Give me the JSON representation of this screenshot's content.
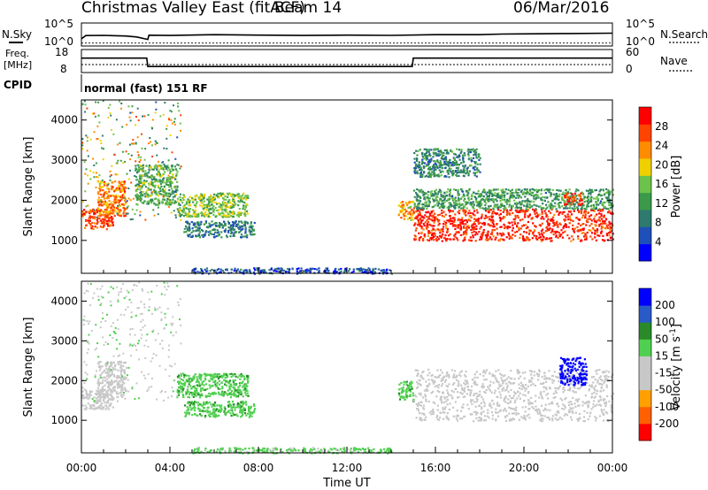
{
  "header": {
    "title": "Christmas Valley East (fitACF)",
    "beam": "Beam 14",
    "date": "06/Mar/2016",
    "cpid_label": "CPID",
    "mode": "normal (fast) 151 RF"
  },
  "nsky": {
    "label": "N.Sky",
    "tick_top": "10^5",
    "tick_bottom": "10^0",
    "right_label": "N.Search",
    "right_tick_top": "10^5",
    "right_tick_bottom": "10^0"
  },
  "freq": {
    "label_line1": "Freq.",
    "label_line2": "[MHz]",
    "tick_top": "18",
    "tick_bottom": "8",
    "right_label": "Nave",
    "right_tick_top": "60",
    "right_tick_bottom": "0"
  },
  "colors": {
    "power": [
      "#0000ff",
      "#1f4fb8",
      "#2e7a6e",
      "#3a9a4a",
      "#6cc24a",
      "#f0d000",
      "#ff8c00",
      "#ff4400",
      "#ff0000"
    ],
    "velocity": [
      "#ff0000",
      "#ff6000",
      "#ffa000",
      "#c8c8c8",
      "#c8c8c8",
      "#50d050",
      "#2a8a2a",
      "#2a5ac8",
      "#0000ff"
    ],
    "gray_scatter": "#c8c8c8"
  },
  "chart_data": [
    {
      "type": "line",
      "name": "nsky",
      "x": [
        0,
        0.2,
        1.0,
        2.0,
        2.5,
        3.0,
        3.05,
        4,
        6,
        8,
        10,
        12,
        14,
        16,
        18,
        19,
        20,
        22,
        24
      ],
      "y": [
        1.4,
        2.2,
        2.3,
        2.1,
        1.8,
        1.2,
        2.3,
        2.3,
        2.4,
        2.3,
        2.2,
        2.3,
        2.3,
        2.4,
        2.5,
        2.6,
        2.7,
        2.8,
        2.8
      ],
      "ylim": [
        0,
        5
      ],
      "yscale": "log10"
    },
    {
      "type": "line",
      "name": "freq",
      "x": [
        0,
        2.95,
        3.0,
        14.95,
        15.0,
        24
      ],
      "y": [
        14.5,
        14.5,
        10.2,
        10.2,
        14.5,
        14.5
      ],
      "ylim": [
        8,
        18
      ],
      "step": true
    },
    {
      "type": "heatmap",
      "name": "power",
      "xlabel": "",
      "ylabel": "Slant Range [km]",
      "xlim": [
        0,
        24
      ],
      "ylim": [
        180,
        4500
      ],
      "yticks": [
        1000,
        2000,
        3000,
        4000
      ],
      "colorbar_label": "Power [dB]",
      "colorbar_ticks": [
        "28",
        "24",
        "20",
        "16",
        "12",
        "8",
        "4"
      ],
      "colorbar_range": [
        0,
        32
      ],
      "regions": [
        {
          "x": [
            0.0,
            1.4
          ],
          "y": [
            1300,
            1800
          ],
          "value": 27
        },
        {
          "x": [
            0.7,
            2.0
          ],
          "y": [
            1600,
            2500
          ],
          "value": 24
        },
        {
          "x": [
            2.4,
            4.3
          ],
          "y": [
            1900,
            2900
          ],
          "value": 14
        },
        {
          "x": [
            4.3,
            7.5
          ],
          "y": [
            1600,
            2200
          ],
          "value": 16
        },
        {
          "x": [
            4.6,
            7.8
          ],
          "y": [
            1100,
            1500
          ],
          "value": 9
        },
        {
          "x": [
            14.3,
            15.0
          ],
          "y": [
            1500,
            2000
          ],
          "value": 22
        },
        {
          "x": [
            15.0,
            24.0
          ],
          "y": [
            1000,
            1800
          ],
          "value": 29
        },
        {
          "x": [
            15.0,
            24.0
          ],
          "y": [
            1800,
            2300
          ],
          "value": 12
        },
        {
          "x": [
            21.8,
            22.6
          ],
          "y": [
            1900,
            2200
          ],
          "value": 27
        },
        {
          "x": [
            15.0,
            18.0
          ],
          "y": [
            2600,
            3300
          ],
          "value": 10
        },
        {
          "x": [
            5.0,
            14.0
          ],
          "y": [
            190,
            330
          ],
          "value": 6
        }
      ]
    },
    {
      "type": "heatmap",
      "name": "velocity",
      "xlabel": "Time UT",
      "ylabel": "Slant Range [km]",
      "xlim": [
        0,
        24
      ],
      "ylim": [
        180,
        4500
      ],
      "yticks": [
        1000,
        2000,
        3000,
        4000
      ],
      "xticks": [
        "00:00",
        "04:00",
        "08:00",
        "12:00",
        "16:00",
        "20:00",
        "00:00"
      ],
      "colorbar_label": "Velocity [m s^-1]",
      "colorbar_ticks": [
        "200",
        "100",
        "50",
        "15",
        "-15",
        "-50",
        "-100",
        "-200"
      ],
      "regions": [
        {
          "x": [
            0.0,
            1.4
          ],
          "y": [
            1300,
            1800
          ],
          "value": 0
        },
        {
          "x": [
            0.7,
            2.0
          ],
          "y": [
            1600,
            2500
          ],
          "value": 0
        },
        {
          "x": [
            4.3,
            7.5
          ],
          "y": [
            1600,
            2200
          ],
          "value": 40
        },
        {
          "x": [
            4.6,
            7.8
          ],
          "y": [
            1100,
            1500
          ],
          "value": 40
        },
        {
          "x": [
            14.3,
            15.0
          ],
          "y": [
            1500,
            2000
          ],
          "value": 40
        },
        {
          "x": [
            15.0,
            24.0
          ],
          "y": [
            1000,
            2300
          ],
          "value": 0
        },
        {
          "x": [
            21.6,
            22.8
          ],
          "y": [
            1900,
            2600
          ],
          "value": 230
        },
        {
          "x": [
            5.0,
            14.0
          ],
          "y": [
            190,
            330
          ],
          "value": 25
        }
      ]
    }
  ]
}
